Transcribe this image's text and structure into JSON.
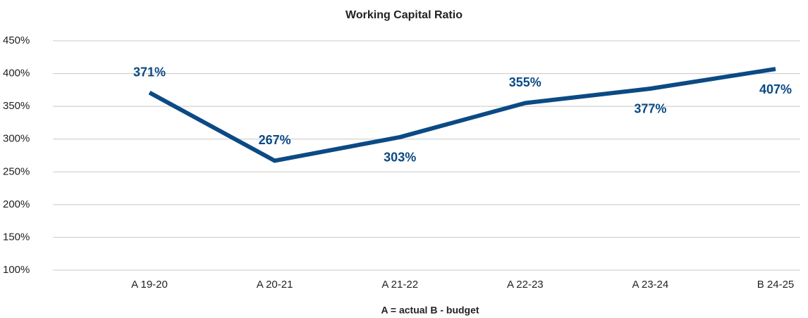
{
  "chart_data": {
    "type": "line",
    "title": "Working Capital Ratio",
    "x_label": "A = actual   B - budget",
    "categories": [
      "A 19-20",
      "A 20-21",
      "A 21-22",
      "A 22-23",
      "A 23-24",
      "B 24-25"
    ],
    "series": [
      {
        "name": "Working Capital Ratio",
        "color": "#0b4a84",
        "values": [
          371,
          267,
          303,
          355,
          377,
          407
        ],
        "value_labels": [
          "371%",
          "267%",
          "303%",
          "355%",
          "377%",
          "407%"
        ]
      }
    ],
    "ylim": [
      100,
      450
    ],
    "yticks": [
      {
        "value": 100,
        "label": "100%"
      },
      {
        "value": 150,
        "label": "150%"
      },
      {
        "value": 200,
        "label": "200%"
      },
      {
        "value": 250,
        "label": "250%"
      },
      {
        "value": 300,
        "label": "300%"
      },
      {
        "value": 350,
        "label": "350%"
      },
      {
        "value": 400,
        "label": "400%"
      },
      {
        "value": 450,
        "label": "450%"
      }
    ],
    "grid": true
  }
}
